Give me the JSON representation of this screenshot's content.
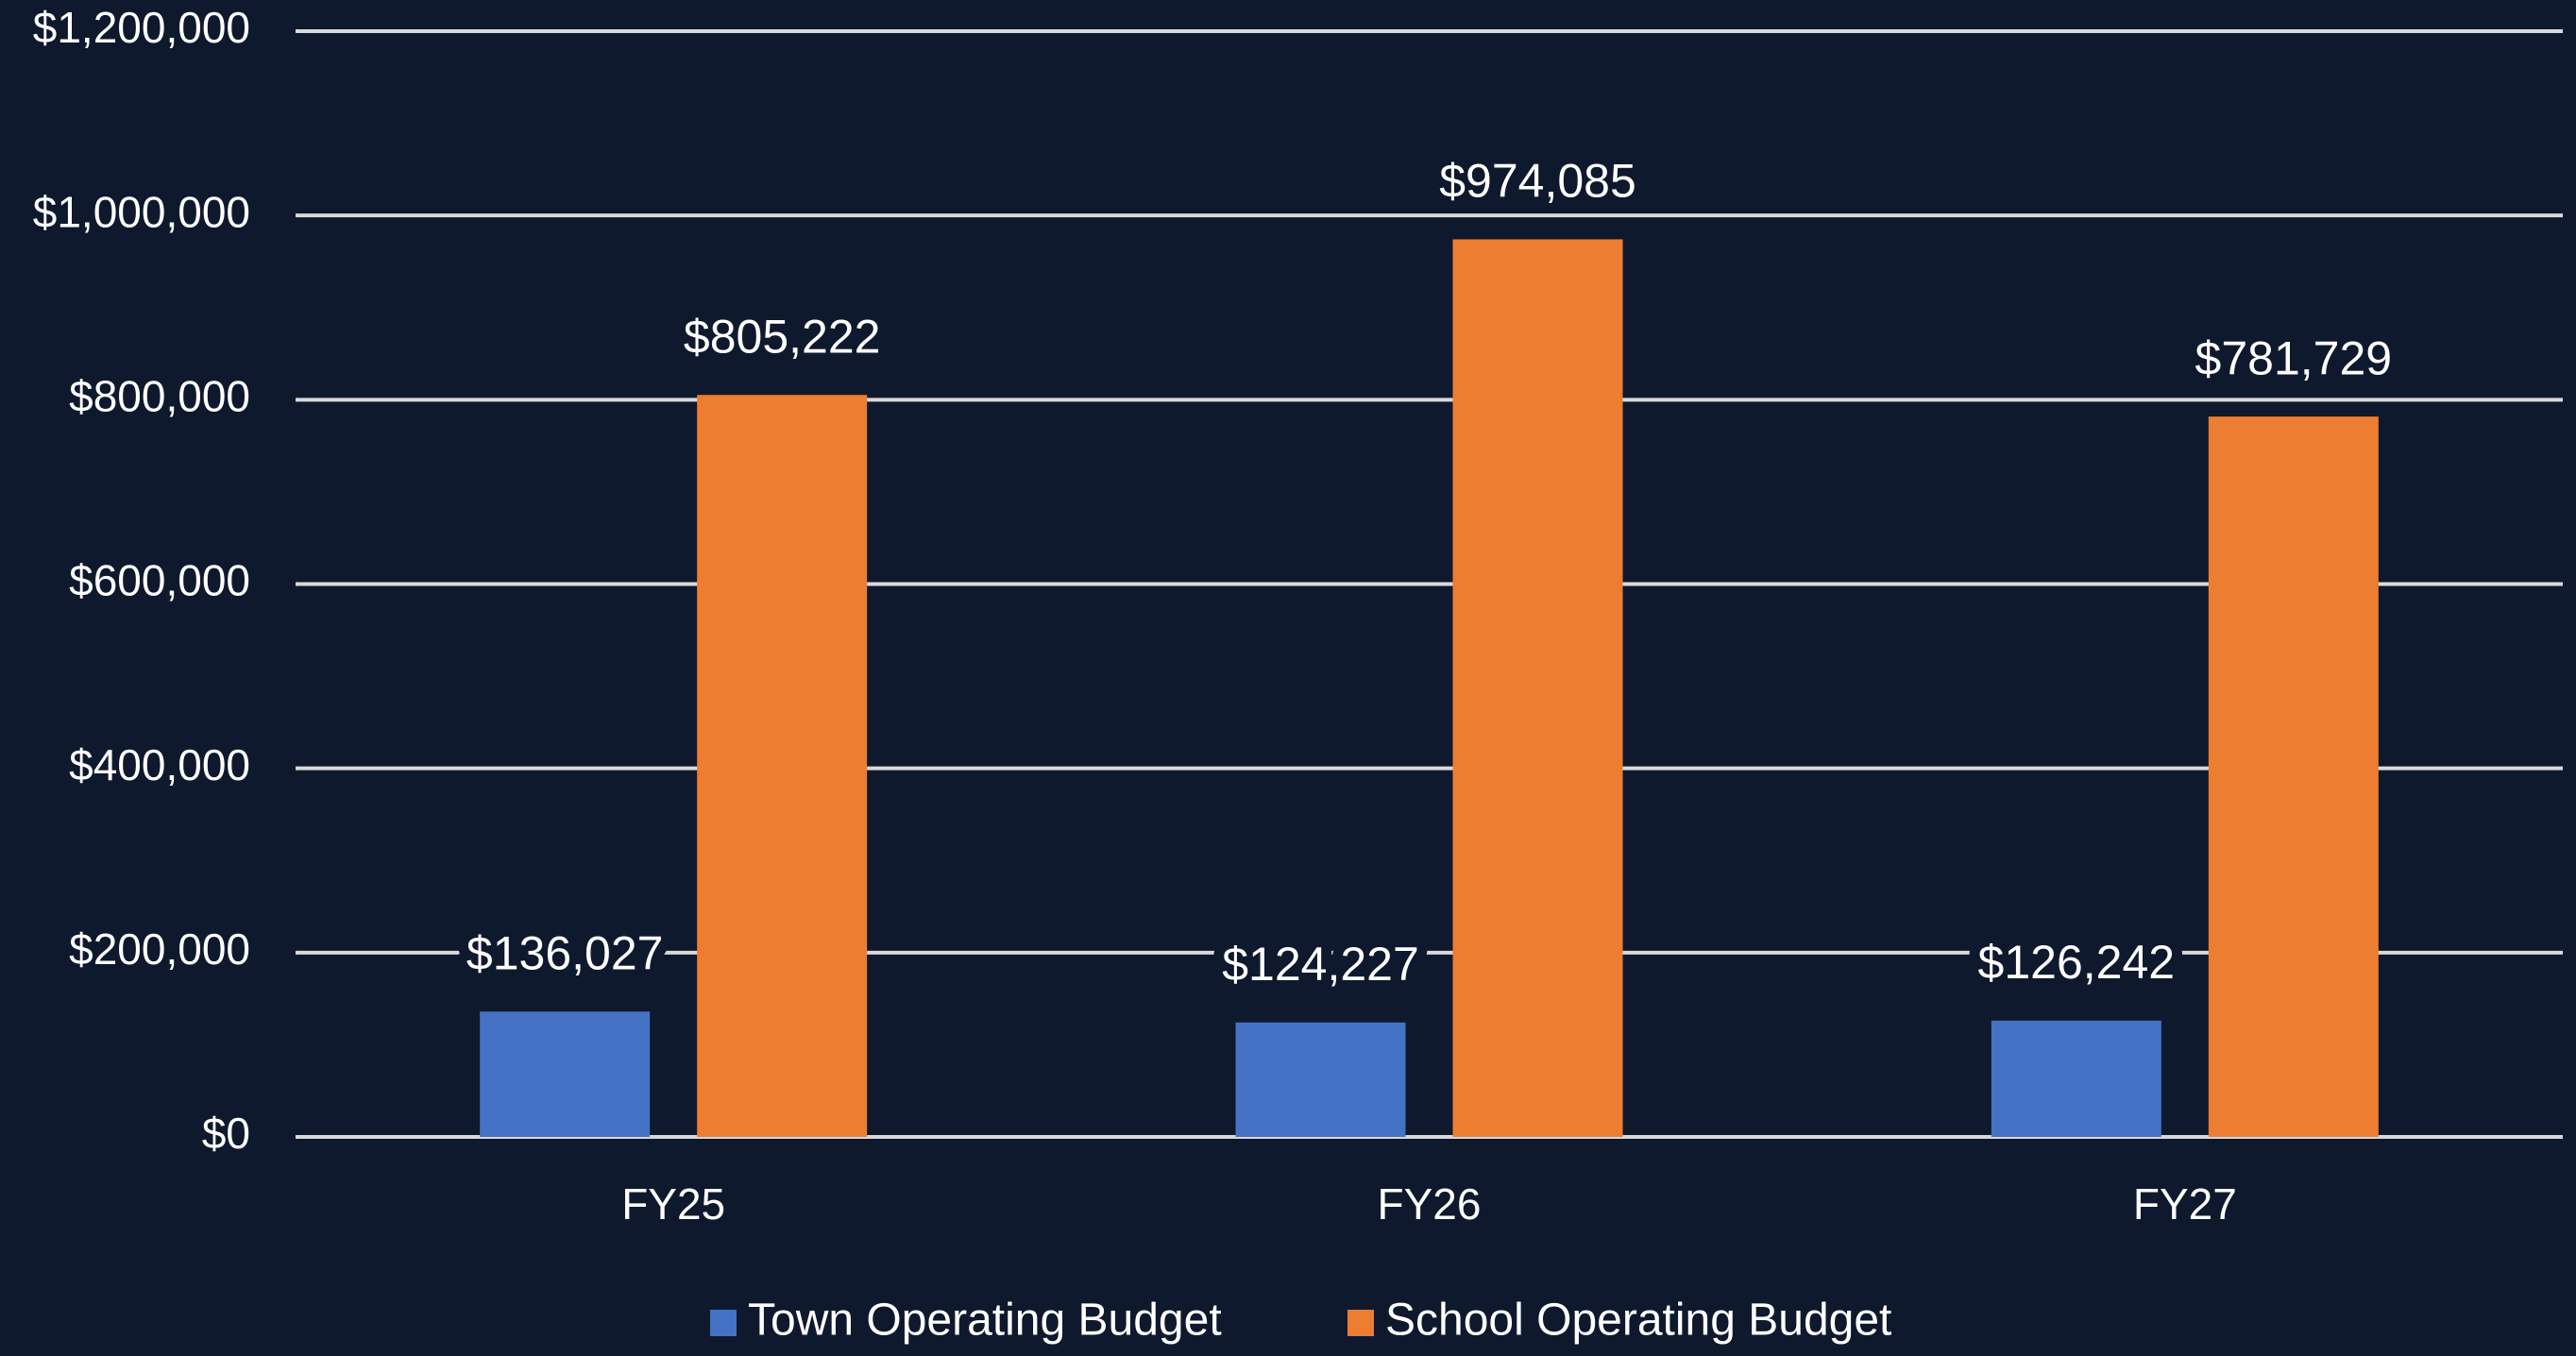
{
  "chart_data": {
    "type": "bar",
    "categories": [
      "FY25",
      "FY26",
      "FY27"
    ],
    "series": [
      {
        "name": "Town Operating Budget",
        "color": "#4472c4",
        "values": [
          136027,
          124227,
          126242
        ],
        "value_labels": [
          "$136,027",
          "$124,227",
          "$126,242"
        ]
      },
      {
        "name": "School Operating Budget",
        "color": "#ed7d31",
        "values": [
          805222,
          974085,
          781729
        ],
        "value_labels": [
          "$805,222",
          "$974,085",
          "$781,729"
        ]
      }
    ],
    "ylim": [
      0,
      1200000
    ],
    "yticks": [
      {
        "value": 0,
        "label": "$0"
      },
      {
        "value": 200000,
        "label": "$200,000"
      },
      {
        "value": 400000,
        "label": "$400,000"
      },
      {
        "value": 600000,
        "label": "$600,000"
      },
      {
        "value": 800000,
        "label": "$800,000"
      },
      {
        "value": 1000000,
        "label": "$1,000,000"
      },
      {
        "value": 1200000,
        "label": "$1,200,000"
      }
    ],
    "grid": true,
    "legend": "bottom"
  }
}
